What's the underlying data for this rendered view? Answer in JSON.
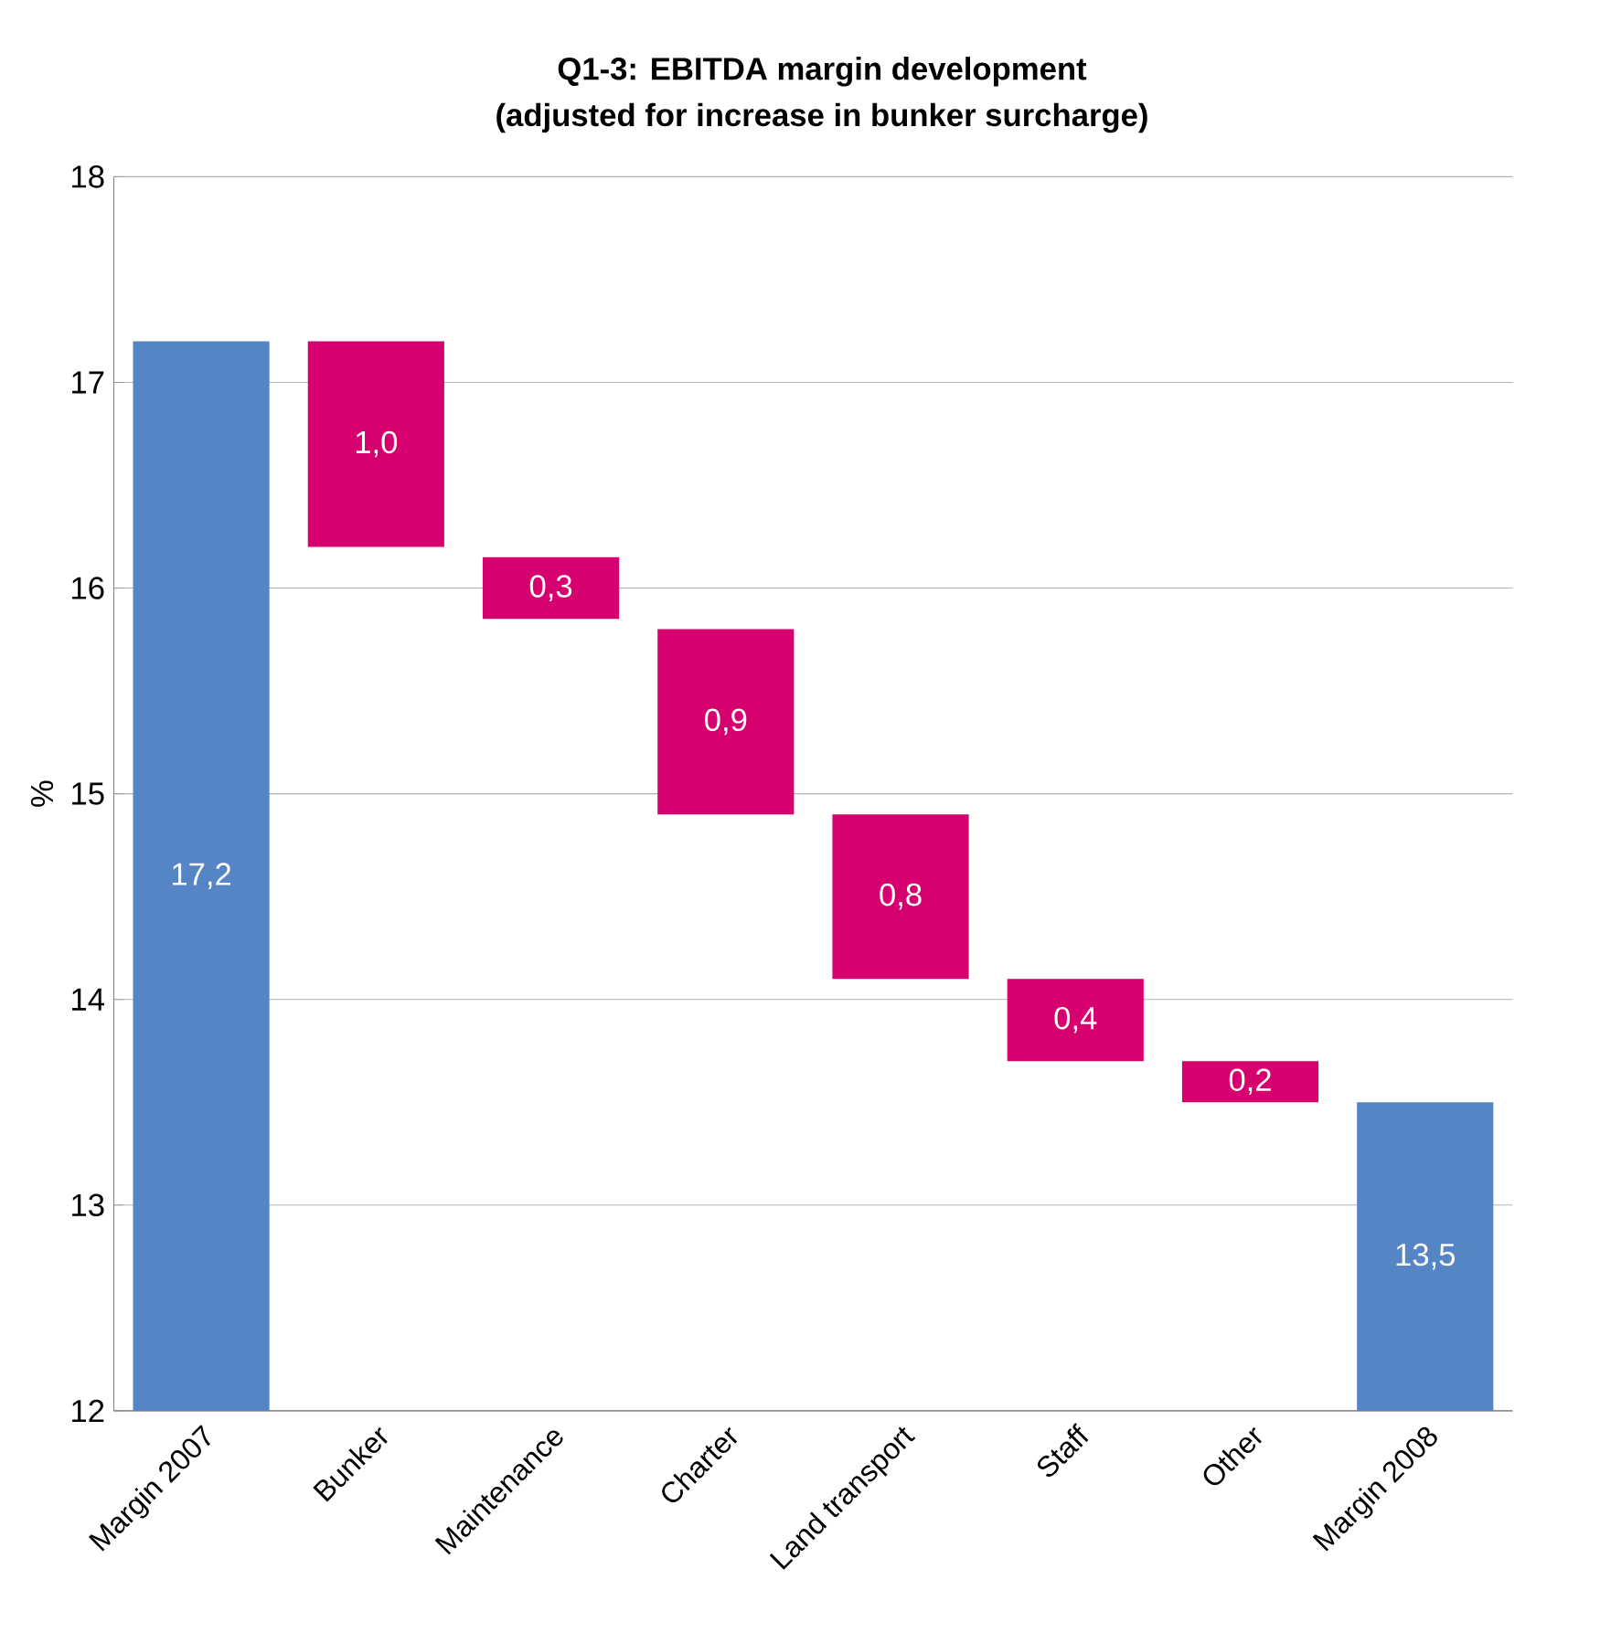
{
  "chart_data": {
    "type": "bar",
    "title": "Q1-3: EBITDA margin development",
    "subtitle": "(adjusted for increase in bunker surcharge)",
    "ylabel": "%",
    "categories": [
      "Margin 2007",
      "Bunker",
      "Maintenance",
      "Charter",
      "Land transport",
      "Staff",
      "Other",
      "Margin 2008"
    ],
    "values": [
      5.2,
      1.0,
      0.3,
      0.9,
      0.8,
      0.4,
      0.2,
      1.5
    ],
    "base": [
      12,
      16.2,
      15.85,
      14.9,
      14.1,
      13.7,
      13.5,
      12
    ],
    "colors": [
      "#5585c5",
      "#d6006f",
      "#d6006f",
      "#d6006f",
      "#d6006f",
      "#d6006f",
      "#d6006f",
      "#5585c5"
    ],
    "value_labels": [
      "17,2",
      "1,0",
      "0,3",
      "0,9",
      "0,8",
      "0,4",
      "0,2",
      "13,5"
    ],
    "ylim": [
      12,
      18
    ],
    "yticks": [
      12,
      13,
      14,
      15,
      16,
      17,
      18
    ],
    "grid": "y"
  }
}
